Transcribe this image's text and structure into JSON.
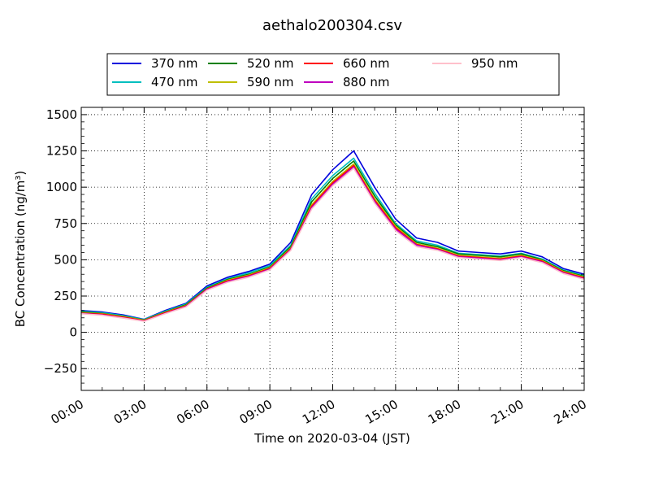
{
  "chart_data": {
    "type": "line",
    "title": "aethalo200304.csv",
    "xlabel": "Time on 2020-03-04 (JST)",
    "ylabel": "BC Concentration (ng/m³)",
    "xlim": [
      "00:00",
      "24:00"
    ],
    "ylim": [
      -400,
      1550
    ],
    "x_ticks": [
      "00:00",
      "03:00",
      "06:00",
      "09:00",
      "12:00",
      "15:00",
      "18:00",
      "21:00",
      "24:00"
    ],
    "y_ticks": [
      -250,
      0,
      250,
      500,
      750,
      1000,
      1250,
      1500
    ],
    "grid": true,
    "legend_position": "top",
    "x": [
      "00:00",
      "01:00",
      "02:00",
      "03:00",
      "04:00",
      "05:00",
      "06:00",
      "07:00",
      "08:00",
      "09:00",
      "10:00",
      "11:00",
      "12:00",
      "13:00",
      "14:00",
      "15:00",
      "16:00",
      "17:00",
      "18:00",
      "19:00",
      "20:00",
      "21:00",
      "22:00",
      "23:00",
      "24:00"
    ],
    "series": [
      {
        "name": "370 nm",
        "color": "#0000dd",
        "values": [
          150,
          140,
          120,
          90,
          150,
          200,
          320,
          380,
          420,
          470,
          620,
          950,
          1120,
          1250,
          1000,
          780,
          650,
          620,
          560,
          550,
          540,
          560,
          520,
          440,
          400
        ]
      },
      {
        "name": "470 nm",
        "color": "#00bfbf",
        "values": [
          145,
          135,
          115,
          88,
          145,
          195,
          310,
          370,
          410,
          460,
          600,
          920,
          1080,
          1200,
          960,
          750,
          630,
          600,
          545,
          535,
          525,
          545,
          505,
          430,
          390
        ]
      },
      {
        "name": "520 nm",
        "color": "#008000",
        "values": [
          140,
          130,
          110,
          85,
          140,
          190,
          305,
          365,
          400,
          450,
          590,
          900,
          1060,
          1180,
          940,
          740,
          620,
          590,
          540,
          530,
          520,
          540,
          500,
          425,
          385
        ]
      },
      {
        "name": "590 nm",
        "color": "#bfbf00",
        "values": [
          135,
          128,
          108,
          83,
          138,
          185,
          300,
          360,
          395,
          445,
          580,
          880,
          1040,
          1160,
          920,
          730,
          610,
          580,
          530,
          520,
          510,
          530,
          495,
          420,
          380
        ]
      },
      {
        "name": "660 nm",
        "color": "#ff0000",
        "values": [
          132,
          125,
          105,
          80,
          135,
          182,
          298,
          355,
          390,
          440,
          575,
          870,
          1030,
          1150,
          910,
          720,
          605,
          575,
          525,
          515,
          505,
          525,
          490,
          415,
          375
        ]
      },
      {
        "name": "880 nm",
        "color": "#bf00bf",
        "values": [
          130,
          120,
          100,
          78,
          130,
          178,
          295,
          350,
          385,
          435,
          570,
          860,
          1020,
          1140,
          900,
          710,
          600,
          570,
          520,
          510,
          500,
          520,
          485,
          410,
          370
        ]
      },
      {
        "name": "950 nm",
        "color": "#ffc0cb",
        "values": [
          128,
          118,
          98,
          76,
          128,
          175,
          290,
          345,
          380,
          430,
          565,
          850,
          1010,
          1130,
          890,
          700,
          590,
          565,
          515,
          505,
          495,
          515,
          480,
          405,
          365
        ]
      }
    ]
  }
}
